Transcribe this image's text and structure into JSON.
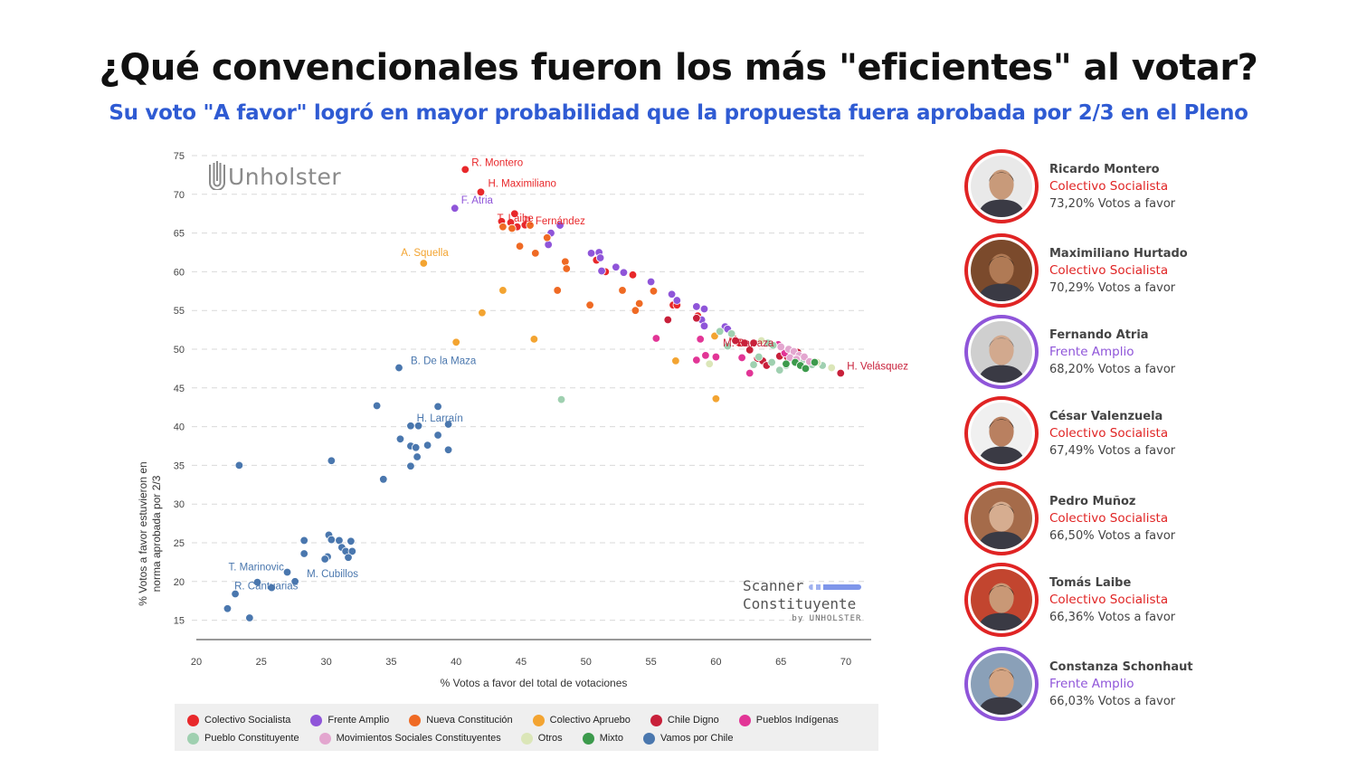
{
  "header": {
    "title": "¿Qué convencionales fueron los más \"eficientes\" al votar?",
    "subtitle": "Su voto \"A favor\" logró en mayor probabilidad que la propuesta fuera aprobada por 2/3 en el Pleno"
  },
  "logos": {
    "brand": "Unholster",
    "scanner_line1": "Scanner",
    "scanner_line2": "Constituyente",
    "scanner_byline": "by UNHOLSTER"
  },
  "colors": {
    "Colectivo Socialista": "#e8282b",
    "Frente Amplio": "#8f55d9",
    "Nueva Constitución": "#ef6a24",
    "Colectivo Apruebo": "#f3a431",
    "Chile Digno": "#c8203a",
    "Pueblos Indígenas": "#e23596",
    "Pueblo Constituyente": "#9fd0b0",
    "Movimientos Sociales Constituyentes": "#e3a6cf",
    "Otros": "#dbe6b8",
    "Mixto": "#3c9a4c",
    "Vamos por Chile": "#4a77ae"
  },
  "legend": {
    "row1": [
      "Colectivo Socialista",
      "Frente Amplio",
      "Nueva Constitución",
      "Colectivo Apruebo",
      "Chile Digno",
      "Pueblos Indígenas"
    ],
    "row2": [
      "Pueblo Constituyente",
      "Movimientos Sociales Constituyentes",
      "Otros",
      "Mixto",
      "Vamos por Chile"
    ]
  },
  "chart_data": {
    "type": "scatter",
    "xlabel": "% Votos a favor del total de votaciones",
    "ylabel_line1": "% Votos a favor estuvieron en",
    "ylabel_line2": "norma aprobada por 2/3",
    "xlim": [
      20,
      71
    ],
    "ylim": [
      12,
      76
    ],
    "xticks": [
      20,
      25,
      30,
      35,
      40,
      45,
      50,
      55,
      60,
      65,
      70
    ],
    "yticks": [
      15,
      20,
      25,
      30,
      35,
      40,
      45,
      50,
      55,
      60,
      65,
      70,
      75
    ],
    "grid": "horizontal dashed",
    "legend_position": "bottom",
    "series": [
      {
        "name": "Colectivo Socialista",
        "points": [
          [
            40.7,
            73.2
          ],
          [
            41.9,
            70.29
          ],
          [
            43.5,
            66.5
          ],
          [
            44.5,
            67.49
          ],
          [
            44.2,
            66.36
          ],
          [
            45.3,
            66.03
          ],
          [
            44.7,
            65.8
          ],
          [
            50.8,
            61.5
          ],
          [
            51.5,
            60.0
          ],
          [
            53.6,
            59.6
          ],
          [
            56.7,
            55.7
          ],
          [
            57.0,
            55.7
          ],
          [
            58.6,
            54.3
          ],
          [
            61.3,
            51.5
          ],
          [
            61.8,
            50.8
          ]
        ]
      },
      {
        "name": "Frente Amplio",
        "points": [
          [
            39.9,
            68.2
          ],
          [
            48.0,
            66.0
          ],
          [
            47.3,
            65.0
          ],
          [
            47.1,
            63.5
          ],
          [
            50.4,
            62.4
          ],
          [
            51.0,
            62.5
          ],
          [
            51.1,
            61.8
          ],
          [
            51.2,
            60.1
          ],
          [
            52.3,
            60.6
          ],
          [
            52.9,
            59.9
          ],
          [
            55.0,
            58.7
          ],
          [
            56.6,
            57.1
          ],
          [
            57.0,
            56.3
          ],
          [
            58.5,
            55.5
          ],
          [
            59.1,
            55.2
          ],
          [
            58.9,
            53.8
          ],
          [
            59.1,
            53.0
          ],
          [
            60.7,
            52.9
          ],
          [
            60.9,
            52.6
          ]
        ]
      },
      {
        "name": "Nueva Constitución",
        "points": [
          [
            43.6,
            65.8
          ],
          [
            44.3,
            65.6
          ],
          [
            44.9,
            63.3
          ],
          [
            45.7,
            66.0
          ],
          [
            46.1,
            62.4
          ],
          [
            47.0,
            64.4
          ],
          [
            48.4,
            61.3
          ],
          [
            48.5,
            60.4
          ],
          [
            47.8,
            57.6
          ],
          [
            50.3,
            55.7
          ],
          [
            52.8,
            57.6
          ],
          [
            54.1,
            55.9
          ],
          [
            53.8,
            55.0
          ],
          [
            55.2,
            57.5
          ]
        ]
      },
      {
        "name": "Colectivo Apruebo",
        "points": [
          [
            37.5,
            61.1
          ],
          [
            43.6,
            57.6
          ],
          [
            42.0,
            54.7
          ],
          [
            40.0,
            50.9
          ],
          [
            46.0,
            51.3
          ],
          [
            56.9,
            48.5
          ],
          [
            59.9,
            51.7
          ],
          [
            60.0,
            43.6
          ]
        ]
      },
      {
        "name": "Chile Digno",
        "points": [
          [
            58.5,
            54.0
          ],
          [
            56.3,
            53.8
          ],
          [
            61.5,
            51.1
          ],
          [
            62.2,
            50.8
          ],
          [
            62.9,
            50.8
          ],
          [
            62.6,
            49.9
          ],
          [
            63.2,
            48.8
          ],
          [
            63.6,
            48.5
          ],
          [
            63.9,
            47.9
          ],
          [
            64.9,
            49.1
          ],
          [
            65.5,
            49.0
          ],
          [
            66.3,
            49.6
          ],
          [
            69.6,
            46.9
          ]
        ]
      },
      {
        "name": "Pueblos Indígenas",
        "points": [
          [
            55.4,
            51.4
          ],
          [
            58.8,
            51.3
          ],
          [
            58.5,
            48.6
          ],
          [
            59.2,
            49.2
          ],
          [
            60.0,
            49.0
          ],
          [
            62.0,
            48.9
          ],
          [
            62.6,
            46.9
          ],
          [
            64.8,
            50.6
          ],
          [
            65.3,
            49.5
          ]
        ]
      },
      {
        "name": "Pueblo Constituyente",
        "points": [
          [
            48.1,
            43.5
          ],
          [
            60.3,
            52.3
          ],
          [
            61.2,
            52.0
          ],
          [
            60.9,
            50.4
          ],
          [
            64.0,
            50.8
          ],
          [
            64.4,
            50.5
          ],
          [
            63.3,
            49.0
          ],
          [
            62.9,
            48.0
          ],
          [
            64.3,
            48.3
          ],
          [
            64.9,
            47.3
          ],
          [
            65.4,
            47.9
          ],
          [
            66.6,
            48.5
          ],
          [
            67.4,
            48.0
          ],
          [
            68.2,
            47.9
          ]
        ]
      },
      {
        "name": "Movimientos Sociales Constituyentes",
        "points": [
          [
            65.0,
            50.3
          ],
          [
            65.6,
            50.0
          ],
          [
            66.0,
            49.7
          ],
          [
            66.4,
            49.2
          ],
          [
            65.7,
            48.9
          ],
          [
            66.2,
            48.7
          ],
          [
            66.8,
            49.0
          ],
          [
            67.2,
            48.4
          ]
        ]
      },
      {
        "name": "Otros",
        "points": [
          [
            59.5,
            48.1
          ],
          [
            63.5,
            51.1
          ],
          [
            68.9,
            47.6
          ],
          [
            67.8,
            48.3
          ]
        ]
      },
      {
        "name": "Mixto",
        "points": [
          [
            65.4,
            48.1
          ],
          [
            66.1,
            48.3
          ],
          [
            66.5,
            47.9
          ],
          [
            66.9,
            47.5
          ],
          [
            67.6,
            48.3
          ]
        ]
      },
      {
        "name": "Vamos por Chile",
        "points": [
          [
            35.6,
            47.6
          ],
          [
            33.9,
            42.7
          ],
          [
            38.6,
            42.6
          ],
          [
            36.5,
            40.1
          ],
          [
            37.1,
            40.1
          ],
          [
            39.4,
            40.3
          ],
          [
            35.7,
            38.4
          ],
          [
            36.5,
            37.5
          ],
          [
            36.9,
            37.3
          ],
          [
            37.8,
            37.6
          ],
          [
            38.6,
            38.9
          ],
          [
            39.4,
            37.0
          ],
          [
            37.0,
            36.1
          ],
          [
            36.5,
            34.9
          ],
          [
            34.4,
            33.2
          ],
          [
            23.3,
            35.0
          ],
          [
            30.4,
            35.6
          ],
          [
            30.2,
            26.0
          ],
          [
            30.4,
            25.4
          ],
          [
            31.0,
            25.3
          ],
          [
            31.9,
            25.2
          ],
          [
            28.3,
            25.3
          ],
          [
            31.2,
            24.4
          ],
          [
            31.5,
            23.9
          ],
          [
            32.0,
            23.9
          ],
          [
            28.3,
            23.6
          ],
          [
            30.1,
            23.2
          ],
          [
            29.9,
            22.9
          ],
          [
            31.7,
            23.1
          ],
          [
            27.0,
            21.2
          ],
          [
            27.6,
            20.0
          ],
          [
            24.7,
            19.9
          ],
          [
            25.8,
            19.2
          ],
          [
            23.0,
            18.4
          ],
          [
            22.4,
            16.5
          ],
          [
            24.1,
            15.3
          ]
        ]
      }
    ],
    "annotations": [
      {
        "text": "R. Montero",
        "series": "Colectivo Socialista",
        "point": [
          40.7,
          73.2
        ]
      },
      {
        "text": "H. Maximiliano",
        "series": "Colectivo Socialista",
        "point": [
          41.9,
          70.29
        ]
      },
      {
        "text": "F. Atria",
        "series": "Frente Amplio",
        "point": [
          39.9,
          68.2
        ]
      },
      {
        "text": "T. Laibe",
        "series": "Colectivo Socialista",
        "point": [
          44.2,
          66.36
        ]
      },
      {
        "text": "P. Fernández",
        "series": "Colectivo Socialista",
        "point": [
          45.3,
          66.03
        ]
      },
      {
        "text": "A. Squella",
        "series": "Colectivo Apruebo",
        "point": [
          37.5,
          61.1
        ]
      },
      {
        "text": "M. Barraza",
        "series": "Chile Digno",
        "point": [
          63.6,
          48.5
        ]
      },
      {
        "text": "H. Velásquez",
        "series": "Chile Digno",
        "point": [
          69.6,
          46.9
        ]
      },
      {
        "text": "B. De la Maza",
        "series": "Vamos por Chile",
        "point": [
          35.6,
          47.6
        ]
      },
      {
        "text": "H. Larraín",
        "series": "Vamos por Chile",
        "point": [
          39.4,
          40.3
        ]
      },
      {
        "text": "M. Cubillos",
        "series": "Vamos por Chile",
        "point": [
          27.6,
          20.0
        ]
      },
      {
        "text": "T. Marinovic",
        "series": "Vamos por Chile",
        "point": [
          24.7,
          19.9
        ]
      },
      {
        "text": "R. Cantuarias",
        "series": "Vamos por Chile",
        "point": [
          23.0,
          18.4
        ]
      }
    ]
  },
  "profiles": [
    {
      "name": "Ricardo Montero",
      "party": "Colectivo Socialista",
      "votes": "73,20% Votos a favor",
      "ring": "#e02424",
      "party_color": "#e02424",
      "skin": "#c89a7a",
      "hair": "#3b2e28",
      "bg": "#e9e9e9"
    },
    {
      "name": "Maximiliano Hurtado",
      "party": "Colectivo Socialista",
      "votes": "70,29% Votos a favor",
      "ring": "#e02424",
      "party_color": "#e02424",
      "skin": "#b07a55",
      "hair": "#2b211b",
      "bg": "#7b4a2c"
    },
    {
      "name": "Fernando Atria",
      "party": "Frente Amplio",
      "votes": "68,20% Votos a favor",
      "ring": "#8f55d9",
      "party_color": "#8f55d9",
      "skin": "#d2a98e",
      "hair": "#6b6b6b",
      "bg": "#cfcfcf"
    },
    {
      "name": "César Valenzuela",
      "party": "Colectivo Socialista",
      "votes": "67,49% Votos a favor",
      "ring": "#e02424",
      "party_color": "#e02424",
      "skin": "#b98060",
      "hair": "#1f1a17",
      "bg": "#f0f0f0"
    },
    {
      "name": "Pedro Muñoz",
      "party": "Colectivo Socialista",
      "votes": "66,50% Votos a favor",
      "ring": "#e02424",
      "party_color": "#e02424",
      "skin": "#d6ad90",
      "hair": "#2a2420",
      "bg": "#a56b4a"
    },
    {
      "name": "Tomás Laibe",
      "party": "Colectivo Socialista",
      "votes": "66,36% Votos a favor",
      "ring": "#e02424",
      "party_color": "#e02424",
      "skin": "#c99876",
      "hair": "#1c1916",
      "bg": "#c2452f"
    },
    {
      "name": "Constanza Schonhaut",
      "party": "Frente Amplio",
      "votes": "66,03% Votos a favor",
      "ring": "#8f55d9",
      "party_color": "#8f55d9",
      "skin": "#d4a584",
      "hair": "#3d2a20",
      "bg": "#8aa0b8"
    }
  ]
}
